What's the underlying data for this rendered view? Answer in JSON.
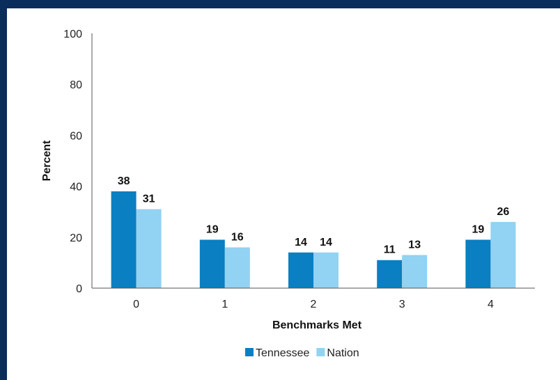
{
  "chart_data": {
    "type": "bar",
    "categories": [
      "0",
      "1",
      "2",
      "3",
      "4"
    ],
    "series": [
      {
        "name": "Tennessee",
        "values": [
          38,
          19,
          14,
          11,
          19
        ],
        "color": "#0a7fc2"
      },
      {
        "name": "Nation",
        "values": [
          31,
          16,
          14,
          13,
          26
        ],
        "color": "#92d2f3"
      }
    ],
    "xlabel": "Benchmarks Met",
    "ylabel": "Percent",
    "ylim": [
      0,
      100
    ],
    "yticks": [
      0,
      20,
      40,
      60,
      80,
      100
    ],
    "grid": false,
    "legend_position": "bottom-center"
  }
}
